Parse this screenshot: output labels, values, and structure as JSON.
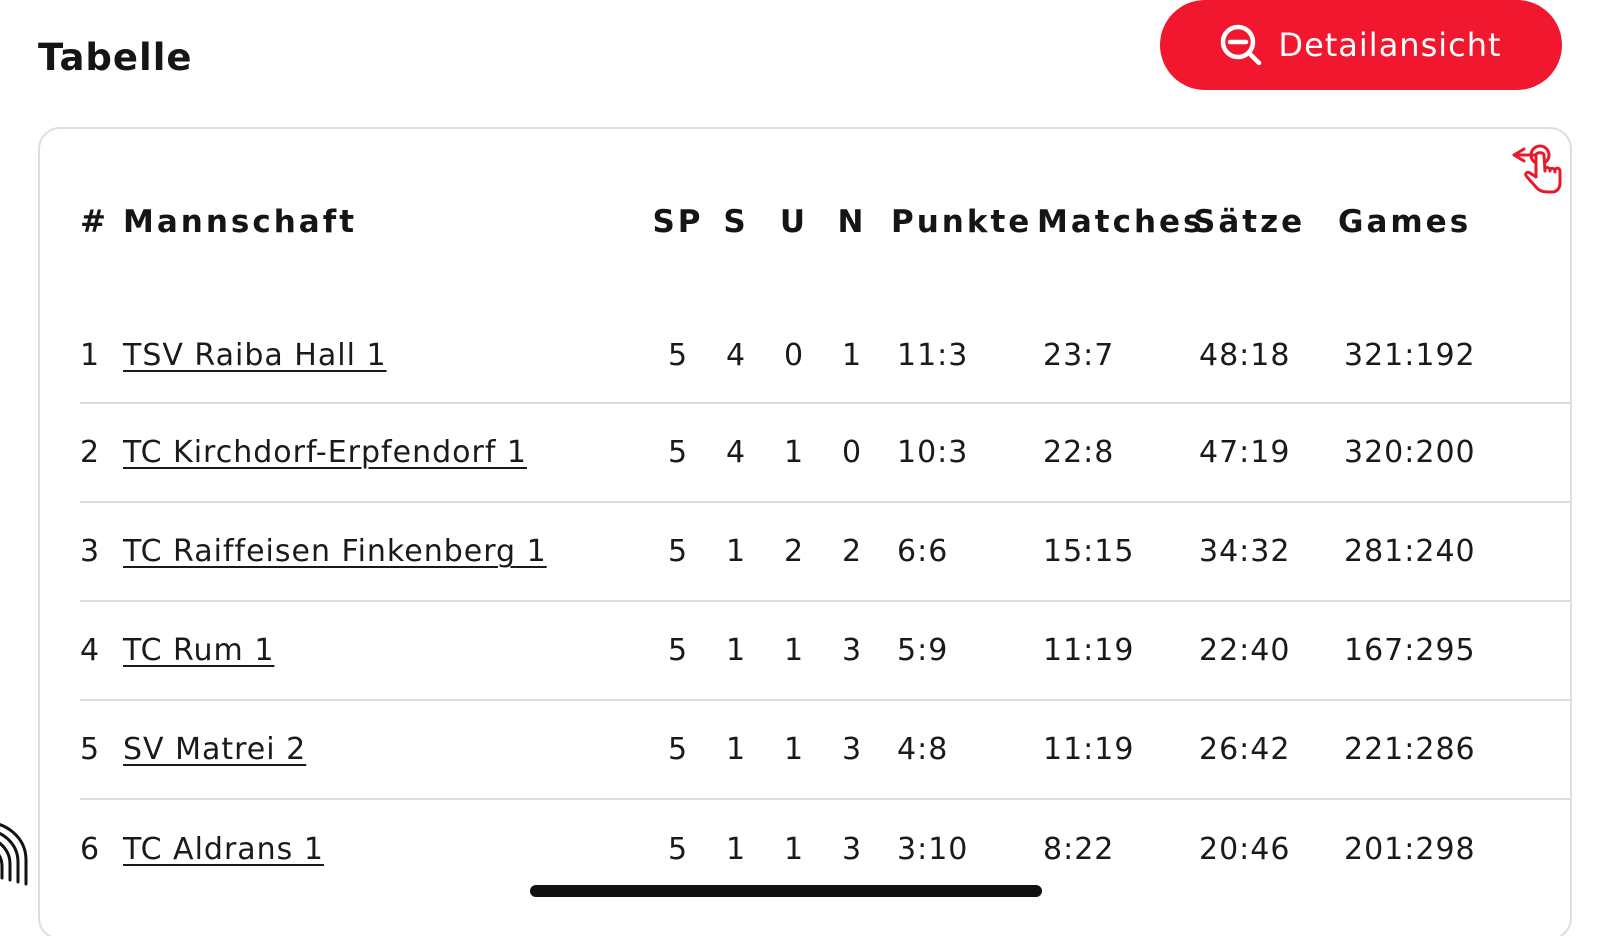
{
  "header": {
    "title": "Tabelle",
    "detail_button_label": "Detailansicht"
  },
  "colors": {
    "accent": "#f0172e",
    "divider": "#dcdcdc"
  },
  "icons": {
    "detail_button": "zoom-out-icon",
    "swipe_hint": "swipe-hand-icon",
    "fingerprint": "fingerprint-icon"
  },
  "table": {
    "columns": [
      "#",
      "Mannschaft",
      "SP",
      "S",
      "U",
      "N",
      "Punkte",
      "Matches",
      "Sätze",
      "Games"
    ],
    "rows": [
      {
        "pos": "1",
        "team": "TSV Raiba Hall 1",
        "sp": "5",
        "s": "4",
        "u": "0",
        "n": "1",
        "punkte": "11:3",
        "matches": "23:7",
        "saetze": "48:18",
        "games": "321:192"
      },
      {
        "pos": "2",
        "team": "TC Kirchdorf-Erpfendorf 1",
        "sp": "5",
        "s": "4",
        "u": "1",
        "n": "0",
        "punkte": "10:3",
        "matches": "22:8",
        "saetze": "47:19",
        "games": "320:200"
      },
      {
        "pos": "3",
        "team": "TC Raiffeisen Finkenberg 1",
        "sp": "5",
        "s": "1",
        "u": "2",
        "n": "2",
        "punkte": "6:6",
        "matches": "15:15",
        "saetze": "34:32",
        "games": "281:240"
      },
      {
        "pos": "4",
        "team": "TC Rum 1",
        "sp": "5",
        "s": "1",
        "u": "1",
        "n": "3",
        "punkte": "5:9",
        "matches": "11:19",
        "saetze": "22:40",
        "games": "167:295"
      },
      {
        "pos": "5",
        "team": "SV Matrei 2",
        "sp": "5",
        "s": "1",
        "u": "1",
        "n": "3",
        "punkte": "4:8",
        "matches": "11:19",
        "saetze": "26:42",
        "games": "221:286"
      },
      {
        "pos": "6",
        "team": "TC Aldrans 1",
        "sp": "5",
        "s": "1",
        "u": "1",
        "n": "3",
        "punkte": "3:10",
        "matches": "8:22",
        "saetze": "20:46",
        "games": "201:298"
      }
    ]
  }
}
